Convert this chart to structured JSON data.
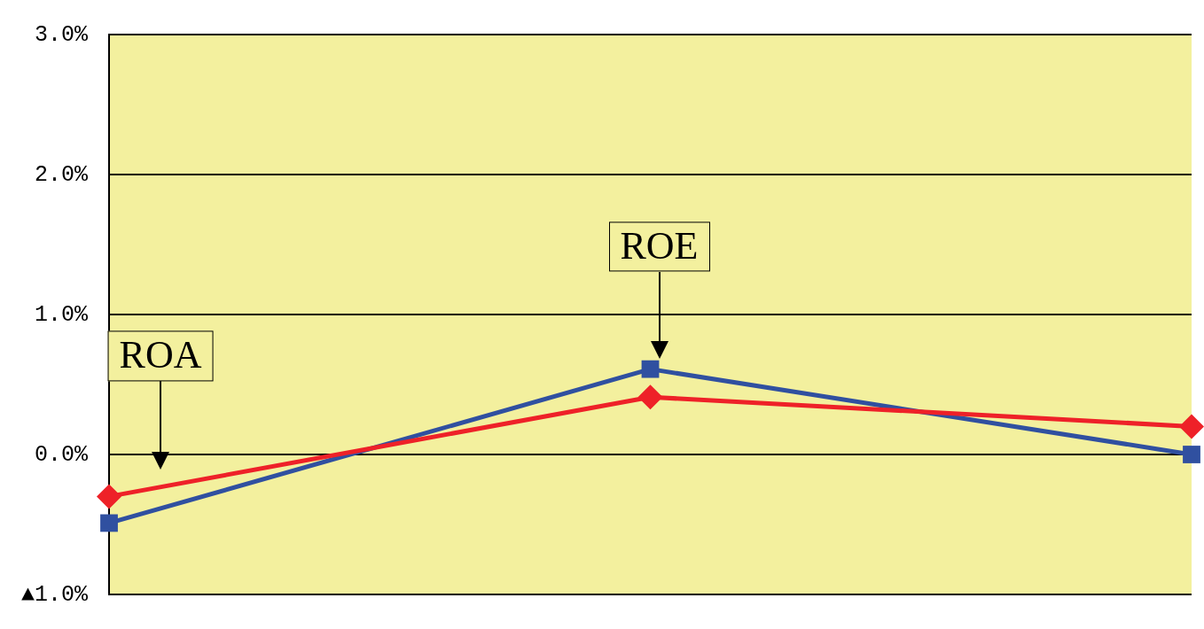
{
  "chart_data": {
    "type": "line",
    "categories": [
      null,
      null,
      null
    ],
    "series": [
      {
        "name": "ROA",
        "color": "#ee2128",
        "values": [
          -0.3,
          0.41,
          0.2
        ],
        "marker": "diamond"
      },
      {
        "name": "ROE",
        "color": "#3050a0",
        "values": [
          -0.49,
          0.61,
          0.0
        ],
        "marker": "square"
      }
    ],
    "ylim": [
      -1,
      3
    ],
    "yticks": [
      {
        "value": -1,
        "label": "▲1.0%"
      },
      {
        "value": 0,
        "label": "0.0%"
      },
      {
        "value": 1,
        "label": "1.0%"
      },
      {
        "value": 2,
        "label": "2.0%"
      },
      {
        "value": 3,
        "label": "3.0%"
      }
    ],
    "grid": "y",
    "legend": false,
    "tick_labels": "y",
    "line_style": "solid"
  }
}
